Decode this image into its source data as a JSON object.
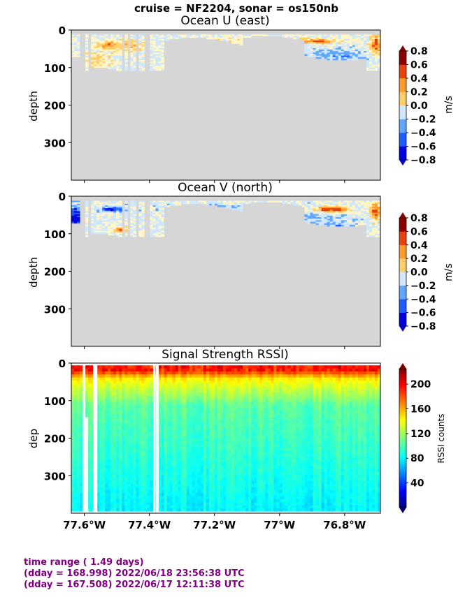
{
  "suptitle": "cruise = NF2204,  sonar = os150nb",
  "panels": [
    {
      "title": "Ocean U (east)",
      "ylabel": "depth",
      "cbar_label": "m/s",
      "cbar_ticks": [
        "0.8",
        "0.6",
        "0.4",
        "0.2",
        "0.0",
        "−0.2",
        "−0.4",
        "−0.6",
        "−0.8"
      ]
    },
    {
      "title": "Ocean V (north)",
      "ylabel": "depth",
      "cbar_label": "m/s",
      "cbar_ticks": [
        "0.8",
        "0.6",
        "0.4",
        "0.2",
        "0.0",
        "−0.2",
        "−0.4",
        "−0.6",
        "−0.8"
      ]
    },
    {
      "title": "Signal Strength RSSI)",
      "ylabel": "dep",
      "cbar_label": "RSSI counts",
      "cbar_ticks": [
        "200",
        "160",
        "120",
        "80",
        "40"
      ]
    }
  ],
  "yticks": [
    "0",
    "100",
    "200",
    "300"
  ],
  "xticks": [
    "77.6°W",
    "77.4°W",
    "77.2°W",
    "77°W",
    "76.8°W"
  ],
  "footer": {
    "line1": "time range ( 1.49 days)",
    "line2": "(dday = 168.998) 2022/06/18 23:56:38 UTC",
    "line3": "(dday = 167.508) 2022/06/17 12:11:38 UTC"
  },
  "colors": {
    "nodata": "#d6d6d6",
    "footer": "#800080"
  },
  "chart_data": [
    {
      "type": "heatmap",
      "title": "Ocean U (east)",
      "xlabel": "",
      "ylabel": "depth",
      "xlim": [
        -77.64,
        -76.69
      ],
      "ylim": [
        400,
        0
      ],
      "colorbar": {
        "label": "m/s",
        "range": [
          -0.8,
          0.8
        ]
      },
      "x_ticks": [
        -77.6,
        -77.4,
        -77.2,
        -77.0,
        -76.8
      ],
      "y_ticks": [
        0,
        100,
        200,
        300
      ]
    },
    {
      "type": "heatmap",
      "title": "Ocean V (north)",
      "xlabel": "",
      "ylabel": "depth",
      "xlim": [
        -77.64,
        -76.69
      ],
      "ylim": [
        400,
        0
      ],
      "colorbar": {
        "label": "m/s",
        "range": [
          -0.8,
          0.8
        ]
      },
      "x_ticks": [
        -77.6,
        -77.4,
        -77.2,
        -77.0,
        -76.8
      ],
      "y_ticks": [
        0,
        100,
        200,
        300
      ]
    },
    {
      "type": "heatmap",
      "title": "Signal Strength RSSI)",
      "xlabel": "",
      "ylabel": "dep",
      "xlim": [
        -77.64,
        -76.69
      ],
      "ylim": [
        400,
        0
      ],
      "colorbar": {
        "label": "RSSI counts",
        "range": [
          0,
          225
        ]
      },
      "x_ticks": [
        -77.6,
        -77.4,
        -77.2,
        -77.0,
        -76.8
      ],
      "y_ticks": [
        0,
        100,
        200,
        300
      ]
    }
  ]
}
